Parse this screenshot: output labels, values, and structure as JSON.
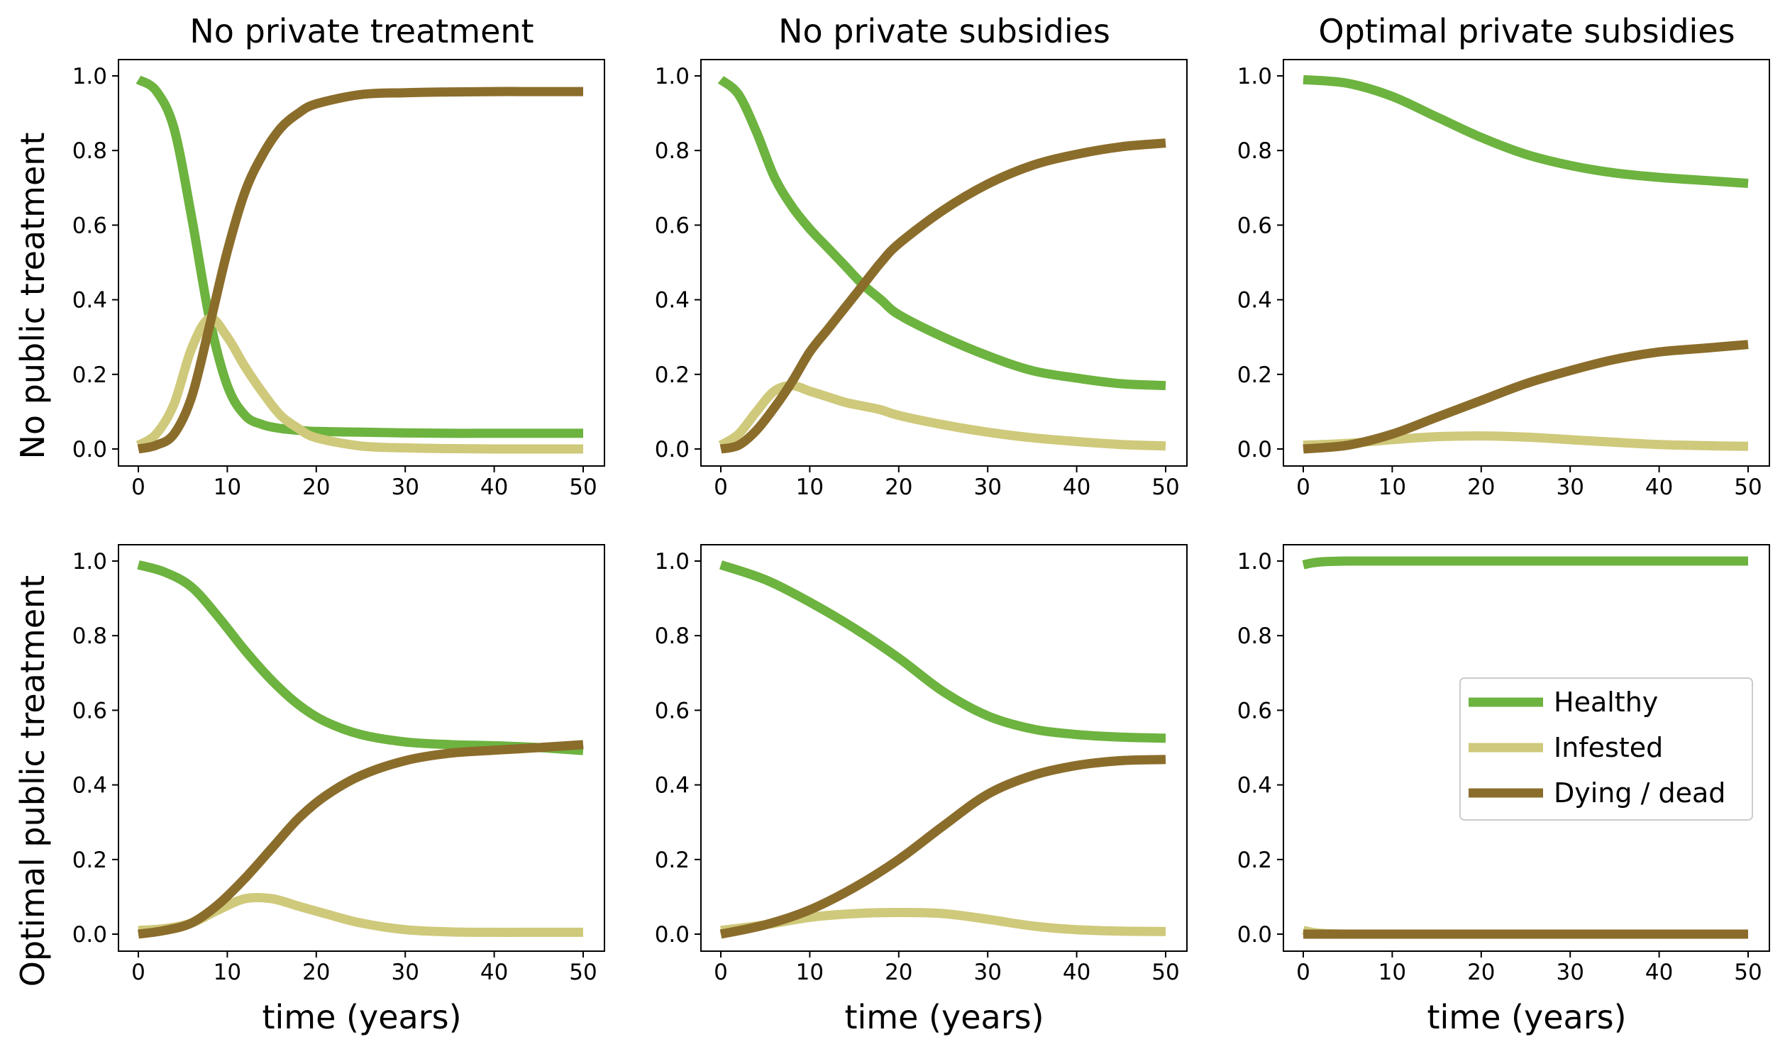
{
  "figure": {
    "column_titles": [
      "No private treatment",
      "No private subsidies",
      "Optimal private subsidies"
    ],
    "row_labels": [
      "No public treatment",
      "Optimal public treatment"
    ],
    "x_label": "time (years)"
  },
  "colors": {
    "healthy": "#6db33f",
    "infested": "#cfc97b",
    "dying_dead": "#8b6d2b",
    "legend_border": "#cccccc"
  },
  "legend": {
    "panel": 5,
    "placement": "center-right",
    "entries": [
      "Healthy",
      "Infested",
      "Dying / dead"
    ]
  },
  "chart_data": [
    {
      "type": "line",
      "row": "No public treatment",
      "column": "No private treatment",
      "xlim": [
        0,
        50
      ],
      "ylim": [
        0,
        1
      ],
      "xticks": [
        "0",
        "10",
        "20",
        "30",
        "40",
        "50"
      ],
      "yticks": [
        "0.0",
        "0.2",
        "0.4",
        "0.6",
        "0.8",
        "1.0"
      ],
      "x": [
        0,
        2,
        4,
        6,
        8,
        10,
        12,
        14,
        16,
        18,
        20,
        25,
        30,
        35,
        40,
        45,
        50
      ],
      "series": [
        {
          "name": "Healthy",
          "values": [
            0.99,
            0.96,
            0.86,
            0.62,
            0.35,
            0.17,
            0.09,
            0.065,
            0.055,
            0.05,
            0.047,
            0.045,
            0.043,
            0.042,
            0.042,
            0.042,
            0.042
          ]
        },
        {
          "name": "Infested",
          "values": [
            0.01,
            0.04,
            0.12,
            0.27,
            0.35,
            0.3,
            0.22,
            0.15,
            0.09,
            0.055,
            0.03,
            0.008,
            0.003,
            0.001,
            0.0,
            0.0,
            0.0
          ]
        },
        {
          "name": "Dying / dead",
          "values": [
            0.0,
            0.01,
            0.04,
            0.14,
            0.33,
            0.53,
            0.69,
            0.79,
            0.86,
            0.9,
            0.925,
            0.95,
            0.955,
            0.957,
            0.958,
            0.958,
            0.958
          ]
        }
      ]
    },
    {
      "type": "line",
      "row": "No public treatment",
      "column": "No private subsidies",
      "xlim": [
        0,
        50
      ],
      "ylim": [
        0,
        1
      ],
      "xticks": [
        "0",
        "10",
        "20",
        "30",
        "40",
        "50"
      ],
      "yticks": [
        "0.0",
        "0.2",
        "0.4",
        "0.6",
        "0.8",
        "1.0"
      ],
      "x": [
        0,
        2,
        4,
        6,
        8,
        10,
        12,
        14,
        16,
        18,
        20,
        25,
        30,
        35,
        40,
        45,
        50
      ],
      "series": [
        {
          "name": "Healthy",
          "values": [
            0.99,
            0.95,
            0.85,
            0.73,
            0.65,
            0.59,
            0.54,
            0.49,
            0.44,
            0.4,
            0.36,
            0.3,
            0.25,
            0.21,
            0.19,
            0.175,
            0.17
          ]
        },
        {
          "name": "Infested",
          "values": [
            0.01,
            0.04,
            0.1,
            0.155,
            0.17,
            0.155,
            0.14,
            0.125,
            0.115,
            0.105,
            0.09,
            0.065,
            0.045,
            0.03,
            0.02,
            0.012,
            0.008
          ]
        },
        {
          "name": "Dying / dead",
          "values": [
            0.0,
            0.01,
            0.05,
            0.11,
            0.18,
            0.26,
            0.32,
            0.38,
            0.44,
            0.5,
            0.55,
            0.64,
            0.71,
            0.76,
            0.79,
            0.81,
            0.82
          ]
        }
      ]
    },
    {
      "type": "line",
      "row": "No public treatment",
      "column": "Optimal private subsidies",
      "xlim": [
        0,
        50
      ],
      "ylim": [
        0,
        1
      ],
      "xticks": [
        "0",
        "10",
        "20",
        "30",
        "40",
        "50"
      ],
      "yticks": [
        "0.0",
        "0.2",
        "0.4",
        "0.6",
        "0.8",
        "1.0"
      ],
      "x": [
        0,
        5,
        10,
        15,
        20,
        25,
        30,
        35,
        40,
        45,
        50
      ],
      "series": [
        {
          "name": "Healthy",
          "values": [
            0.99,
            0.98,
            0.945,
            0.89,
            0.835,
            0.79,
            0.76,
            0.74,
            0.728,
            0.72,
            0.712
          ]
        },
        {
          "name": "Infested",
          "values": [
            0.01,
            0.015,
            0.025,
            0.033,
            0.035,
            0.032,
            0.025,
            0.018,
            0.012,
            0.009,
            0.007
          ]
        },
        {
          "name": "Dying / dead",
          "values": [
            0.0,
            0.01,
            0.04,
            0.085,
            0.13,
            0.175,
            0.21,
            0.24,
            0.26,
            0.27,
            0.28
          ]
        }
      ]
    },
    {
      "type": "line",
      "row": "Optimal public treatment",
      "column": "No private treatment",
      "xlim": [
        0,
        50
      ],
      "ylim": [
        0,
        1
      ],
      "xticks": [
        "0",
        "10",
        "20",
        "30",
        "40",
        "50"
      ],
      "yticks": [
        "0.0",
        "0.2",
        "0.4",
        "0.6",
        "0.8",
        "1.0"
      ],
      "x": [
        0,
        3,
        6,
        9,
        12,
        15,
        18,
        21,
        25,
        30,
        35,
        40,
        45,
        50
      ],
      "series": [
        {
          "name": "Healthy",
          "values": [
            0.99,
            0.97,
            0.93,
            0.85,
            0.76,
            0.68,
            0.615,
            0.57,
            0.535,
            0.515,
            0.508,
            0.505,
            0.5,
            0.492
          ]
        },
        {
          "name": "Infested",
          "values": [
            0.01,
            0.015,
            0.03,
            0.065,
            0.095,
            0.095,
            0.075,
            0.055,
            0.03,
            0.012,
            0.006,
            0.005,
            0.005,
            0.005
          ]
        },
        {
          "name": "Dying / dead",
          "values": [
            0.0,
            0.01,
            0.03,
            0.08,
            0.15,
            0.23,
            0.31,
            0.37,
            0.425,
            0.465,
            0.485,
            0.493,
            0.5,
            0.508
          ]
        }
      ]
    },
    {
      "type": "line",
      "row": "Optimal public treatment",
      "column": "No private subsidies",
      "xlim": [
        0,
        50
      ],
      "ylim": [
        0,
        1
      ],
      "xticks": [
        "0",
        "10",
        "20",
        "30",
        "40",
        "50"
      ],
      "yticks": [
        "0.0",
        "0.2",
        "0.4",
        "0.6",
        "0.8",
        "1.0"
      ],
      "x": [
        0,
        5,
        10,
        15,
        20,
        25,
        30,
        35,
        40,
        45,
        50
      ],
      "series": [
        {
          "name": "Healthy",
          "values": [
            0.99,
            0.95,
            0.89,
            0.82,
            0.74,
            0.65,
            0.585,
            0.55,
            0.535,
            0.528,
            0.525
          ]
        },
        {
          "name": "Infested",
          "values": [
            0.01,
            0.025,
            0.045,
            0.055,
            0.058,
            0.055,
            0.04,
            0.022,
            0.012,
            0.008,
            0.007
          ]
        },
        {
          "name": "Dying / dead",
          "values": [
            0.0,
            0.025,
            0.065,
            0.125,
            0.2,
            0.29,
            0.375,
            0.425,
            0.452,
            0.465,
            0.468
          ]
        }
      ]
    },
    {
      "type": "line",
      "row": "Optimal public treatment",
      "column": "Optimal private subsidies",
      "xlim": [
        0,
        50
      ],
      "ylim": [
        0,
        1
      ],
      "xticks": [
        "0",
        "10",
        "20",
        "30",
        "40",
        "50"
      ],
      "yticks": [
        "0.0",
        "0.2",
        "0.4",
        "0.6",
        "0.8",
        "1.0"
      ],
      "x": [
        0,
        1,
        2,
        3,
        5,
        10,
        20,
        30,
        40,
        50
      ],
      "series": [
        {
          "name": "Healthy",
          "values": [
            0.99,
            0.995,
            0.998,
            0.999,
            1.0,
            1.0,
            1.0,
            1.0,
            1.0,
            1.0
          ]
        },
        {
          "name": "Infested",
          "values": [
            0.01,
            0.005,
            0.002,
            0.001,
            0.0,
            0.0,
            0.0,
            0.0,
            0.0,
            0.0
          ]
        },
        {
          "name": "Dying / dead",
          "values": [
            0.0,
            0.0,
            0.0,
            0.0,
            0.0,
            0.0,
            0.0,
            0.0,
            0.0,
            0.0
          ]
        }
      ]
    }
  ]
}
